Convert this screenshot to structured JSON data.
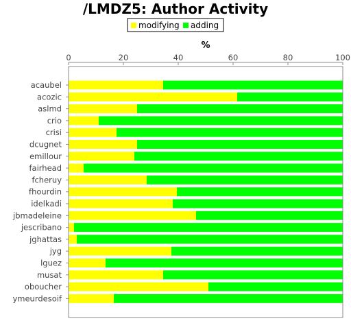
{
  "chart_data": {
    "type": "bar",
    "orientation": "horizontal",
    "stacked": true,
    "title": "/LMDZ5: Author Activity",
    "xlabel": "%",
    "xlim": [
      0,
      100
    ],
    "xticks": [
      "0",
      "20",
      "40",
      "60",
      "80",
      "100"
    ],
    "legend_position": "top",
    "grid": false,
    "categories": [
      "acaubel",
      "acozic",
      "aslmd",
      "crio",
      "crisi",
      "dcugnet",
      "emillour",
      "fairhead",
      "fcheruy",
      "fhourdin",
      "idelkadi",
      "jbmadeleine",
      "jescribano",
      "jghattas",
      "jyg",
      "lguez",
      "musat",
      "oboucher",
      "ymeurdesoif"
    ],
    "series": [
      {
        "name": "modifying",
        "color": "#ffff00",
        "values": [
          34.5,
          61.5,
          25,
          11,
          17.5,
          25,
          24,
          5.5,
          28.5,
          39.5,
          38,
          46.5,
          2,
          3,
          37.5,
          13.5,
          34.5,
          51,
          16.5
        ]
      },
      {
        "name": "adding",
        "color": "#00ff00",
        "values": [
          65.5,
          38.5,
          75,
          89,
          82.5,
          75,
          76,
          94.5,
          71.5,
          60.5,
          62,
          53.5,
          98,
          97,
          62.5,
          86.5,
          65.5,
          49,
          83.5
        ]
      }
    ]
  }
}
